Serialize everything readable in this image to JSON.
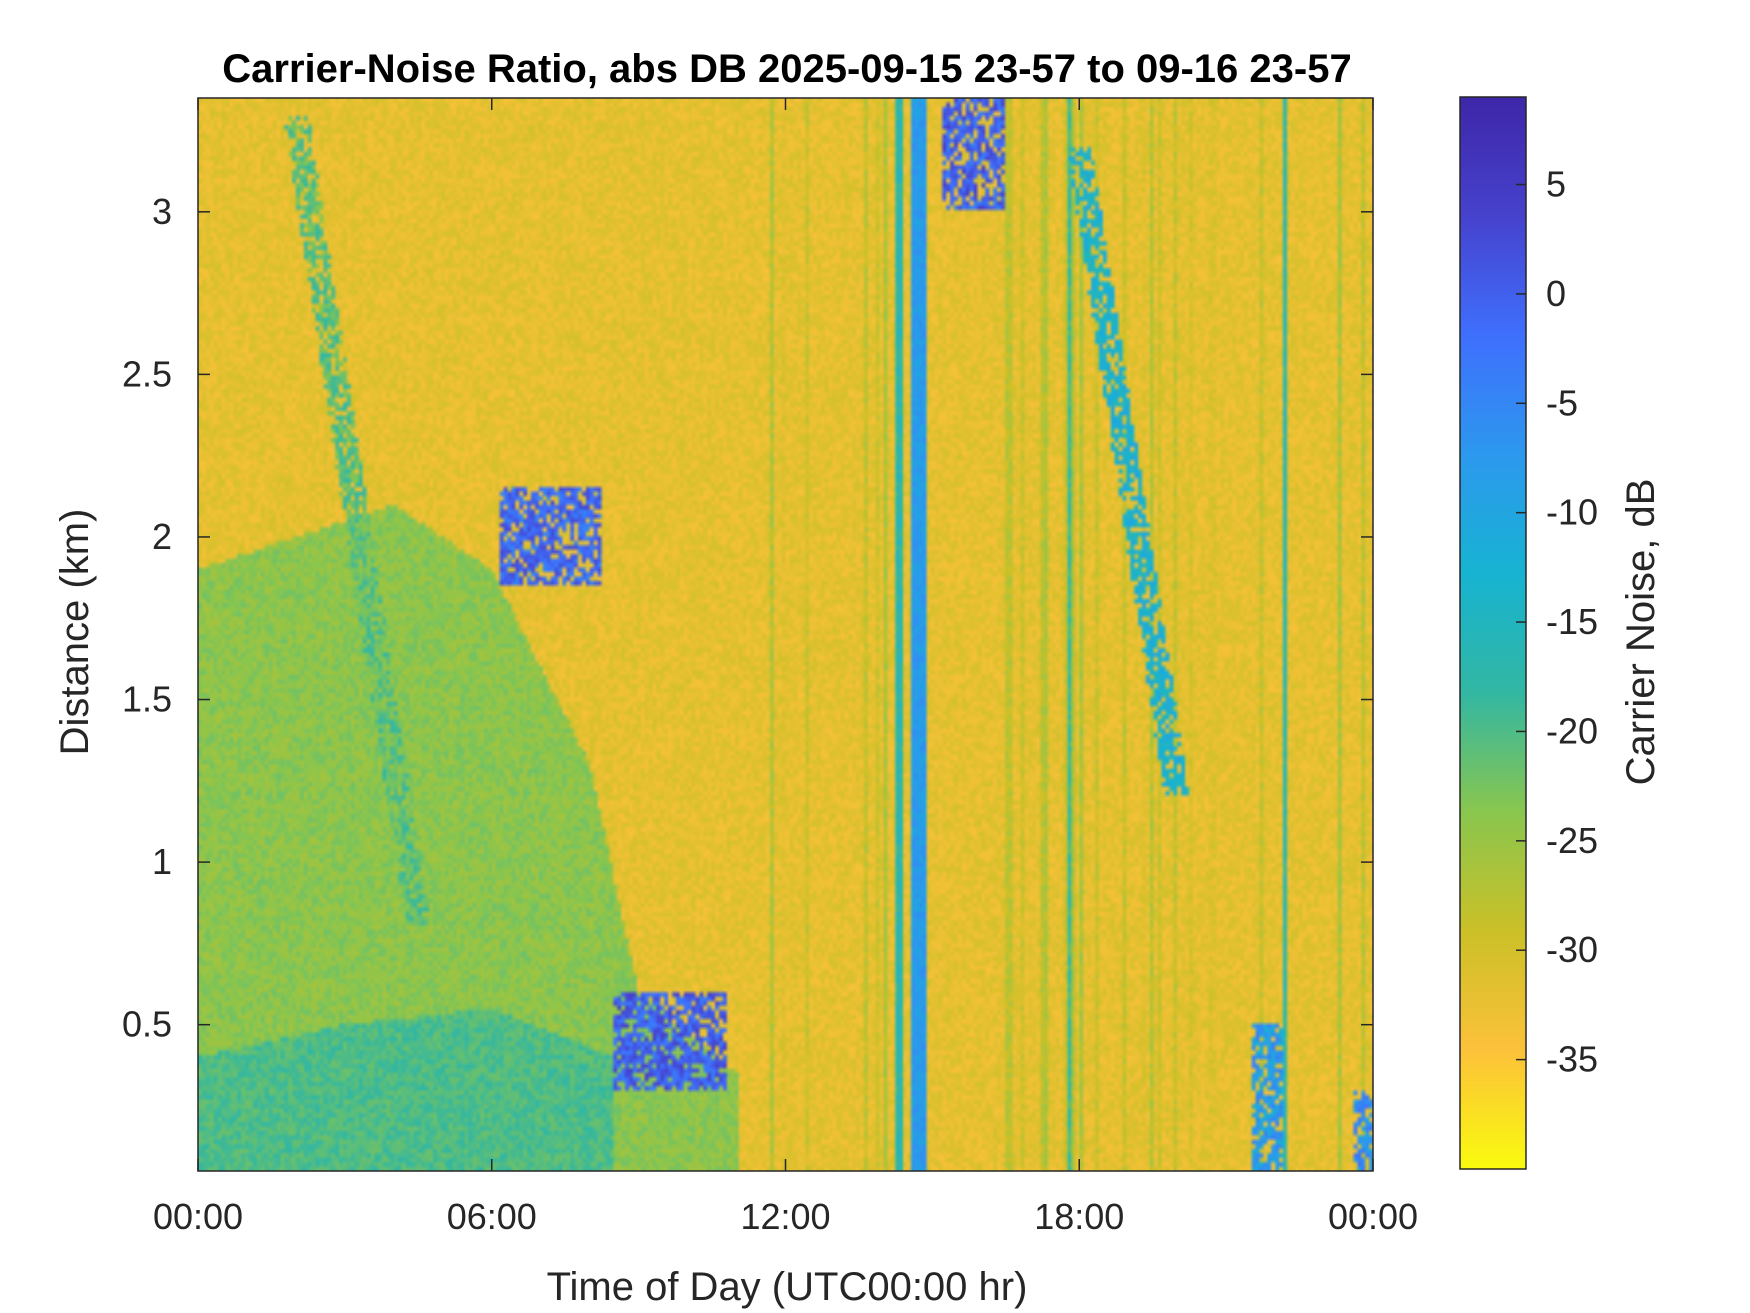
{
  "chart_data": {
    "type": "heatmap",
    "title": "Carrier-Noise Ratio, abs DB 2025-09-15 23-57 to 09-16 23-57",
    "xlabel": "Time of Day (UTC00:00 hr)",
    "ylabel": "Distance (km)",
    "x_unit": "hours",
    "xlim": [
      0,
      24
    ],
    "ylim": [
      0.05,
      3.35
    ],
    "x_ticks": [
      {
        "value": 0,
        "label": "00:00"
      },
      {
        "value": 6,
        "label": "06:00"
      },
      {
        "value": 12,
        "label": "12:00"
      },
      {
        "value": 18,
        "label": "18:00"
      },
      {
        "value": 24,
        "label": "00:00"
      }
    ],
    "y_ticks": [
      {
        "value": 0.5,
        "label": "0.5"
      },
      {
        "value": 1,
        "label": "1"
      },
      {
        "value": 1.5,
        "label": "1.5"
      },
      {
        "value": 2,
        "label": "2"
      },
      {
        "value": 2.5,
        "label": "2.5"
      },
      {
        "value": 3,
        "label": "3"
      }
    ],
    "colorbar": {
      "label": "Carrier Noise, dB",
      "colormap": "parula (reversed)",
      "clim": [
        -40,
        9
      ],
      "ticks": [
        {
          "value": 5,
          "label": "5"
        },
        {
          "value": 0,
          "label": "0"
        },
        {
          "value": -5,
          "label": "-5"
        },
        {
          "value": -10,
          "label": "-10"
        },
        {
          "value": -15,
          "label": "-15"
        },
        {
          "value": -20,
          "label": "-20"
        },
        {
          "value": -25,
          "label": "-25"
        },
        {
          "value": -30,
          "label": "-30"
        },
        {
          "value": -35,
          "label": "-35"
        }
      ],
      "colors": [
        "#f9fb0e",
        "#fcc13a",
        "#cbc028",
        "#89c64e",
        "#32b7a3",
        "#17b3d2",
        "#2c98ee",
        "#3f6ffd",
        "#4642cd",
        "#3e26a8"
      ]
    },
    "background_value": -32,
    "features": [
      {
        "kind": "boundary_layer",
        "x_range": [
          0,
          11
        ],
        "top_km_by_hour": [
          [
            0,
            1.9
          ],
          [
            2,
            2.0
          ],
          [
            4,
            2.1
          ],
          [
            6,
            1.9
          ],
          [
            8,
            1.3
          ],
          [
            9,
            0.6
          ],
          [
            11,
            0.35
          ]
        ],
        "value": -24
      },
      {
        "kind": "moist_layer",
        "x_range": [
          0,
          8.5
        ],
        "top_km_by_hour": [
          [
            0,
            0.4
          ],
          [
            3,
            0.5
          ],
          [
            6,
            0.55
          ],
          [
            8.5,
            0.4
          ]
        ],
        "value": -20
      },
      {
        "kind": "plume",
        "x": [
          6.2,
          8.2
        ],
        "y": [
          1.85,
          2.15
        ],
        "value": 3
      },
      {
        "kind": "plume",
        "x": [
          8.5,
          10.8
        ],
        "y": [
          0.3,
          0.6
        ],
        "value": 4
      },
      {
        "kind": "plume",
        "x": [
          15.2,
          16.5
        ],
        "y": [
          3.0,
          3.35
        ],
        "value": 4
      },
      {
        "kind": "vertical_band",
        "x": 14.7,
        "width_h": 0.35,
        "value": -8
      },
      {
        "kind": "vertical_band",
        "x": 14.35,
        "width_h": 0.15,
        "value": -17
      },
      {
        "kind": "vertical_band",
        "x": 17.8,
        "width_h": 0.1,
        "value": -19
      },
      {
        "kind": "vertical_band",
        "x": 22.2,
        "width_h": 0.08,
        "value": -17
      },
      {
        "kind": "streak",
        "from": [
          18.0,
          3.2
        ],
        "to": [
          20.0,
          1.2
        ],
        "value": -10
      },
      {
        "kind": "streak",
        "from": [
          2.0,
          3.3
        ],
        "to": [
          4.5,
          0.8
        ],
        "value": -18
      },
      {
        "kind": "plume",
        "x": [
          23.6,
          24
        ],
        "y": [
          0.05,
          0.3
        ],
        "value": -2
      },
      {
        "kind": "plume",
        "x": [
          21.5,
          22.2
        ],
        "y": [
          0.05,
          0.5
        ],
        "value": -4
      }
    ]
  }
}
